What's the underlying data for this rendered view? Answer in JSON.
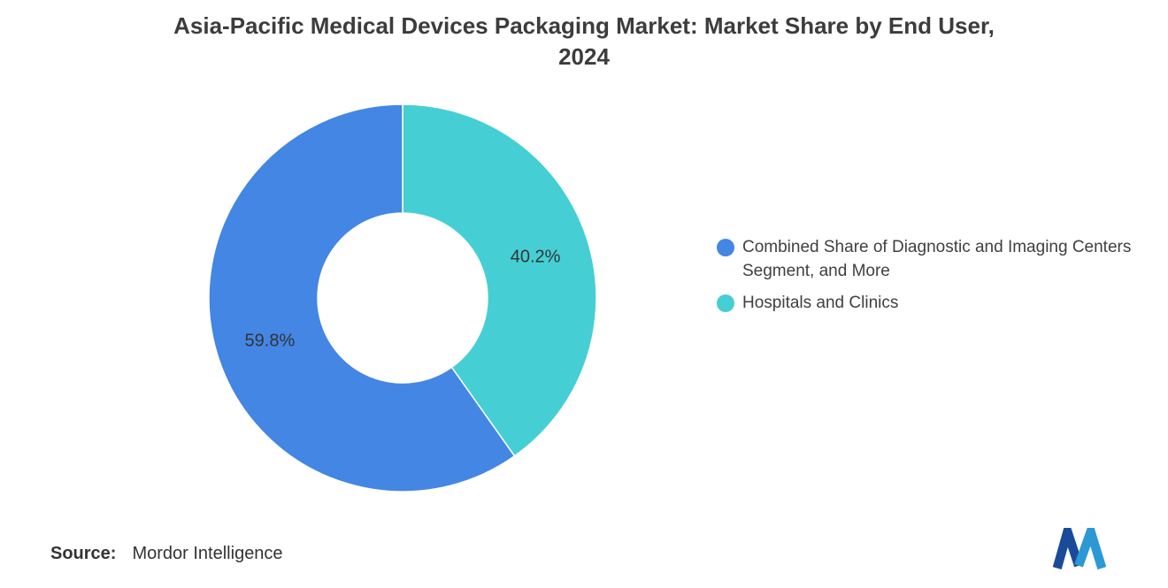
{
  "title": "Asia-Pacific Medical Devices Packaging Market: Market Share by End User,\n2024",
  "chart_data": {
    "type": "pie",
    "donut": true,
    "title": "Asia-Pacific Medical Devices Packaging Market: Market Share by End User, 2024",
    "series": [
      {
        "name": "Combined Share of Diagnostic and Imaging Centers Segment, and More",
        "value": 59.8,
        "label": "59.8%",
        "color": "#4486E4"
      },
      {
        "name": "Hospitals and Clinics",
        "value": 40.2,
        "label": "40.2%",
        "color": "#45CFD4"
      }
    ],
    "start_angle_deg": 0,
    "visual_clockwise_order_from_top": [
      "Hospitals and Clinics",
      "Combined Share of Diagnostic and Imaging Centers Segment, and More"
    ],
    "inner_radius_ratio": 0.44,
    "legend_position": "right",
    "data_label_color": "#333333"
  },
  "source": {
    "label": "Source:",
    "value": "Mordor Intelligence"
  },
  "logo": {
    "name": "mordor-intelligence-logo",
    "color_dark": "#1A4B9B",
    "color_light": "#2C99D4"
  }
}
